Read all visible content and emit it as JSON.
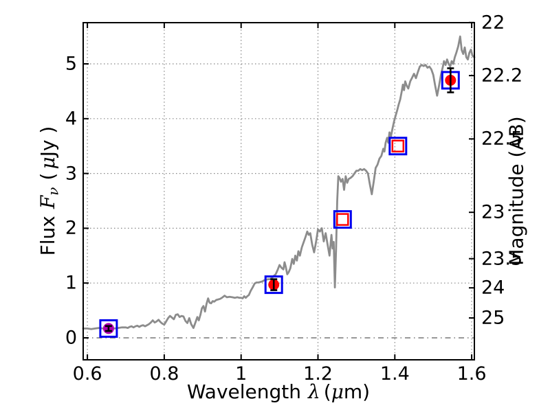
{
  "labels": {
    "xlabel_word": "Wavelength",
    "xlabel_lambda": "λ",
    "xlabel_open": "(",
    "xlabel_mu": "μ",
    "xlabel_close": "m)",
    "flux_word": "Flux",
    "flux_symbol": "F",
    "flux_sub": "ν",
    "flux_open": "(",
    "flux_mu": "μ",
    "flux_unit": "Jy )",
    "ylabel_right": "Magnitude (AB)"
  },
  "chart_data": {
    "type": "line+scatter",
    "title": "",
    "xlabel": "Wavelength λ (μm)",
    "ylabel_left": "Flux Fν ( μJy )",
    "ylabel_right": "Magnitude (AB)",
    "xlim": [
      0.589,
      1.607
    ],
    "ylim_flux": [
      -0.401,
      5.752
    ],
    "x_ticks": [
      0.6,
      0.8,
      1.0,
      1.2,
      1.4,
      1.6
    ],
    "x_tick_labels": [
      "0.6",
      "0.8",
      "1",
      "1.2",
      "1.4",
      "1.6"
    ],
    "y_ticks_flux": [
      0,
      1,
      2,
      3,
      4,
      5
    ],
    "y_tick_labels_flux": [
      "0",
      "1",
      "2",
      "3",
      "4",
      "5"
    ],
    "mag_ticks": [
      22,
      22.2,
      22.5,
      23,
      23.5,
      24,
      25
    ],
    "mag_tick_labels": [
      "22",
      "22.2",
      "22.5",
      "23",
      "23.5",
      "24",
      "25"
    ],
    "mag_zeropoint_ujy": 23.9,
    "grid": {
      "style": "dotted",
      "color": "#858585",
      "zero_line_style": "dash-dot"
    },
    "legend": null,
    "aperture_marker": {
      "shape": "open-square",
      "color": "#0000ee",
      "size": 24,
      "stroke": 3
    },
    "photometry": [
      {
        "x": 0.655,
        "flux": 0.17,
        "err": 0.045,
        "marker": "filled-circle",
        "color": "#b000b0"
      },
      {
        "x": 1.085,
        "flux": 0.97,
        "err": 0.1,
        "marker": "filled-circle",
        "color": "#ff0000"
      },
      {
        "x": 1.264,
        "flux": 2.16,
        "err": 0,
        "marker": "open-square",
        "color": "#ff0000"
      },
      {
        "x": 1.408,
        "flux": 3.5,
        "err": 0,
        "marker": "open-square",
        "color": "#ff0000"
      },
      {
        "x": 1.545,
        "flux": 4.7,
        "err": 0.22,
        "marker": "filled-circle",
        "color": "#ff0000"
      }
    ],
    "spectrum": {
      "name": "model-spectrum",
      "color": "#8c8c8c",
      "linewidth": 2.8,
      "points": [
        [
          0.589,
          0.17
        ],
        [
          0.6,
          0.17
        ],
        [
          0.61,
          0.16
        ],
        [
          0.62,
          0.17
        ],
        [
          0.63,
          0.18
        ],
        [
          0.64,
          0.17
        ],
        [
          0.65,
          0.18
        ],
        [
          0.66,
          0.18
        ],
        [
          0.67,
          0.17
        ],
        [
          0.68,
          0.18
        ],
        [
          0.69,
          0.19
        ],
        [
          0.7,
          0.19
        ],
        [
          0.705,
          0.18
        ],
        [
          0.71,
          0.2
        ],
        [
          0.715,
          0.21
        ],
        [
          0.72,
          0.19
        ],
        [
          0.725,
          0.21
        ],
        [
          0.73,
          0.22
        ],
        [
          0.735,
          0.2
        ],
        [
          0.74,
          0.22
        ],
        [
          0.745,
          0.23
        ],
        [
          0.75,
          0.21
        ],
        [
          0.755,
          0.23
        ],
        [
          0.76,
          0.25
        ],
        [
          0.765,
          0.28
        ],
        [
          0.77,
          0.32
        ],
        [
          0.775,
          0.28
        ],
        [
          0.78,
          0.3
        ],
        [
          0.785,
          0.33
        ],
        [
          0.79,
          0.29
        ],
        [
          0.795,
          0.26
        ],
        [
          0.8,
          0.24
        ],
        [
          0.805,
          0.3
        ],
        [
          0.81,
          0.36
        ],
        [
          0.815,
          0.4
        ],
        [
          0.82,
          0.37
        ],
        [
          0.825,
          0.34
        ],
        [
          0.83,
          0.42
        ],
        [
          0.835,
          0.43
        ],
        [
          0.84,
          0.38
        ],
        [
          0.845,
          0.4
        ],
        [
          0.85,
          0.39
        ],
        [
          0.855,
          0.31
        ],
        [
          0.86,
          0.27
        ],
        [
          0.865,
          0.36
        ],
        [
          0.87,
          0.25
        ],
        [
          0.876,
          0.18
        ],
        [
          0.882,
          0.3
        ],
        [
          0.886,
          0.38
        ],
        [
          0.89,
          0.32
        ],
        [
          0.894,
          0.42
        ],
        [
          0.898,
          0.54
        ],
        [
          0.902,
          0.58
        ],
        [
          0.906,
          0.48
        ],
        [
          0.91,
          0.62
        ],
        [
          0.914,
          0.72
        ],
        [
          0.918,
          0.64
        ],
        [
          0.922,
          0.63
        ],
        [
          0.926,
          0.67
        ],
        [
          0.93,
          0.66
        ],
        [
          0.935,
          0.69
        ],
        [
          0.94,
          0.7
        ],
        [
          0.945,
          0.71
        ],
        [
          0.95,
          0.73
        ],
        [
          0.957,
          0.77
        ],
        [
          0.963,
          0.74
        ],
        [
          0.97,
          0.75
        ],
        [
          0.977,
          0.74
        ],
        [
          0.984,
          0.73
        ],
        [
          0.99,
          0.74
        ],
        [
          0.996,
          0.73
        ],
        [
          1.0,
          0.73
        ],
        [
          1.004,
          0.72
        ],
        [
          1.008,
          0.76
        ],
        [
          1.012,
          0.73
        ],
        [
          1.016,
          0.76
        ],
        [
          1.02,
          0.78
        ],
        [
          1.025,
          0.86
        ],
        [
          1.03,
          0.92
        ],
        [
          1.035,
          0.99
        ],
        [
          1.04,
          1.01
        ],
        [
          1.045,
          1.01
        ],
        [
          1.05,
          1.02
        ],
        [
          1.055,
          1.03
        ],
        [
          1.06,
          1.05
        ],
        [
          1.065,
          1.06
        ],
        [
          1.07,
          1.07
        ],
        [
          1.075,
          1.07
        ],
        [
          1.08,
          1.09
        ],
        [
          1.085,
          1.13
        ],
        [
          1.09,
          1.16
        ],
        [
          1.095,
          1.24
        ],
        [
          1.1,
          1.33
        ],
        [
          1.105,
          1.28
        ],
        [
          1.11,
          1.25
        ],
        [
          1.113,
          1.38
        ],
        [
          1.116,
          1.3
        ],
        [
          1.12,
          1.16
        ],
        [
          1.124,
          1.2
        ],
        [
          1.128,
          1.27
        ],
        [
          1.133,
          1.44
        ],
        [
          1.137,
          1.35
        ],
        [
          1.141,
          1.5
        ],
        [
          1.145,
          1.41
        ],
        [
          1.149,
          1.58
        ],
        [
          1.153,
          1.5
        ],
        [
          1.158,
          1.65
        ],
        [
          1.163,
          1.75
        ],
        [
          1.168,
          1.85
        ],
        [
          1.172,
          1.94
        ],
        [
          1.176,
          1.88
        ],
        [
          1.18,
          1.91
        ],
        [
          1.185,
          1.7
        ],
        [
          1.19,
          1.56
        ],
        [
          1.195,
          1.75
        ],
        [
          1.2,
          1.98
        ],
        [
          1.205,
          1.94
        ],
        [
          1.21,
          2.0
        ],
        [
          1.215,
          1.76
        ],
        [
          1.22,
          1.91
        ],
        [
          1.225,
          1.7
        ],
        [
          1.23,
          1.5
        ],
        [
          1.235,
          1.88
        ],
        [
          1.238,
          1.63
        ],
        [
          1.241,
          1.75
        ],
        [
          1.244,
          0.92
        ],
        [
          1.247,
          1.6
        ],
        [
          1.25,
          2.5
        ],
        [
          1.253,
          2.95
        ],
        [
          1.256,
          2.92
        ],
        [
          1.26,
          2.85
        ],
        [
          1.264,
          2.9
        ],
        [
          1.268,
          2.7
        ],
        [
          1.272,
          2.95
        ],
        [
          1.276,
          2.83
        ],
        [
          1.28,
          2.9
        ],
        [
          1.285,
          2.92
        ],
        [
          1.29,
          2.95
        ],
        [
          1.295,
          3.0
        ],
        [
          1.3,
          3.05
        ],
        [
          1.305,
          3.05
        ],
        [
          1.31,
          3.08
        ],
        [
          1.315,
          3.06
        ],
        [
          1.32,
          3.08
        ],
        [
          1.325,
          3.05
        ],
        [
          1.33,
          3.0
        ],
        [
          1.335,
          2.8
        ],
        [
          1.34,
          2.62
        ],
        [
          1.345,
          2.85
        ],
        [
          1.35,
          3.1
        ],
        [
          1.355,
          3.16
        ],
        [
          1.36,
          3.27
        ],
        [
          1.365,
          3.32
        ],
        [
          1.37,
          3.45
        ],
        [
          1.373,
          3.4
        ],
        [
          1.376,
          3.56
        ],
        [
          1.38,
          3.65
        ],
        [
          1.383,
          3.56
        ],
        [
          1.386,
          3.75
        ],
        [
          1.39,
          3.68
        ],
        [
          1.394,
          3.82
        ],
        [
          1.398,
          3.95
        ],
        [
          1.402,
          4.05
        ],
        [
          1.406,
          4.15
        ],
        [
          1.41,
          4.26
        ],
        [
          1.414,
          4.35
        ],
        [
          1.418,
          4.5
        ],
        [
          1.421,
          4.62
        ],
        [
          1.424,
          4.52
        ],
        [
          1.427,
          4.68
        ],
        [
          1.431,
          4.6
        ],
        [
          1.435,
          4.55
        ],
        [
          1.44,
          4.68
        ],
        [
          1.445,
          4.75
        ],
        [
          1.45,
          4.82
        ],
        [
          1.455,
          4.74
        ],
        [
          1.46,
          4.85
        ],
        [
          1.465,
          4.95
        ],
        [
          1.47,
          4.98
        ],
        [
          1.475,
          4.96
        ],
        [
          1.48,
          4.98
        ],
        [
          1.485,
          4.93
        ],
        [
          1.49,
          4.95
        ],
        [
          1.495,
          4.9
        ],
        [
          1.5,
          4.8
        ],
        [
          1.505,
          4.6
        ],
        [
          1.51,
          4.42
        ],
        [
          1.515,
          4.6
        ],
        [
          1.52,
          4.8
        ],
        [
          1.525,
          4.95
        ],
        [
          1.528,
          5.05
        ],
        [
          1.532,
          4.98
        ],
        [
          1.536,
          5.08
        ],
        [
          1.54,
          5.0
        ],
        [
          1.544,
          4.95
        ],
        [
          1.548,
          5.05
        ],
        [
          1.552,
          5.0
        ],
        [
          1.556,
          5.12
        ],
        [
          1.56,
          5.2
        ],
        [
          1.565,
          5.32
        ],
        [
          1.57,
          5.5
        ],
        [
          1.574,
          5.25
        ],
        [
          1.578,
          5.18
        ],
        [
          1.582,
          5.3
        ],
        [
          1.586,
          5.12
        ],
        [
          1.59,
          5.08
        ],
        [
          1.594,
          5.2
        ],
        [
          1.598,
          5.26
        ],
        [
          1.602,
          5.15
        ],
        [
          1.607,
          5.12
        ]
      ]
    }
  }
}
